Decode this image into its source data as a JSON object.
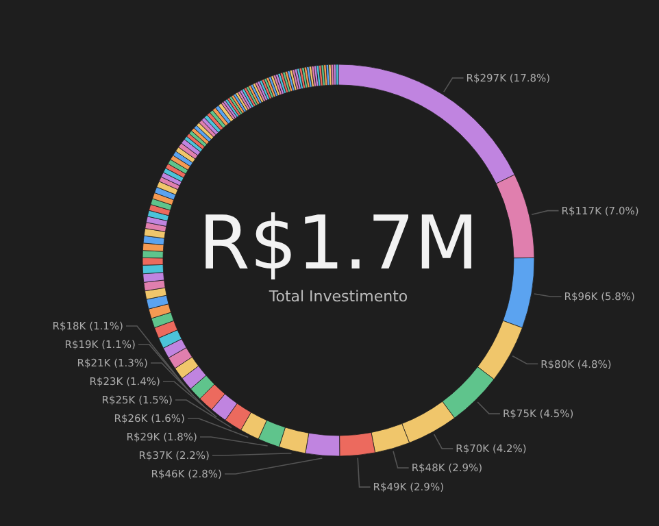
{
  "chart_data": {
    "type": "donut",
    "title": "R$1.7M",
    "subtitle": "Total Investimento",
    "categories": [
      null,
      null,
      null,
      null,
      null,
      null,
      null,
      null,
      null,
      null,
      null,
      null,
      null,
      null,
      null,
      null,
      null,
      null,
      null,
      null,
      null,
      null,
      null,
      null,
      null,
      null,
      null,
      null,
      null,
      null,
      null,
      null,
      null,
      null,
      null,
      null,
      null,
      null,
      null,
      null,
      null,
      null,
      null,
      null,
      null,
      null,
      null,
      null,
      null,
      null,
      null,
      null,
      null,
      null,
      null,
      null,
      null,
      null,
      null,
      null,
      null,
      null,
      null,
      null,
      null,
      null,
      null,
      null,
      null,
      null,
      null,
      null,
      null,
      null,
      null,
      null,
      null,
      null,
      null,
      null,
      null,
      null,
      null,
      null,
      null,
      null,
      null,
      null,
      null,
      null,
      null,
      null,
      null,
      null,
      null,
      null,
      null,
      null,
      null,
      null,
      null,
      null,
      null,
      null,
      null,
      null,
      null,
      null,
      null,
      null,
      null,
      null,
      null,
      null,
      null,
      null,
      null
    ],
    "values": [
      17.8,
      7.0,
      5.8,
      4.8,
      4.5,
      4.2,
      2.9,
      2.9,
      2.8,
      2.2,
      1.8,
      1.6,
      1.5,
      1.4,
      1.3,
      1.1,
      1.1,
      1.0,
      1.0,
      0.9,
      0.9,
      0.9,
      0.8,
      0.8,
      0.8,
      0.7,
      0.7,
      0.7,
      0.7,
      0.6,
      0.6,
      0.6,
      0.6,
      0.6,
      0.5,
      0.5,
      0.5,
      0.5,
      0.5,
      0.5,
      0.5,
      0.5,
      0.4,
      0.4,
      0.4,
      0.4,
      0.4,
      0.4,
      0.4,
      0.4,
      0.4,
      0.4,
      0.3,
      0.3,
      0.3,
      0.3,
      0.3,
      0.3,
      0.3,
      0.3,
      0.3,
      0.3,
      0.3,
      0.3,
      0.3,
      0.3,
      0.2,
      0.2,
      0.2,
      0.2,
      0.2,
      0.2,
      0.2,
      0.2,
      0.2,
      0.2,
      0.2,
      0.2,
      0.2,
      0.2,
      0.2,
      0.2,
      0.2,
      0.2,
      0.2,
      0.2,
      0.2,
      0.2,
      0.2,
      0.2,
      0.2,
      0.2,
      0.2,
      0.2,
      0.2,
      0.2,
      0.2,
      0.2,
      0.2,
      0.2,
      0.2,
      0.2,
      0.2,
      0.2,
      0.2,
      0.2,
      0.2,
      0.2,
      0.2,
      0.2,
      0.2,
      0.2,
      0.2,
      0.2,
      0.2,
      0.2,
      0.2
    ],
    "colors": [
      "#c084e0",
      "#e07fae",
      "#5ba3f0",
      "#f0c66b",
      "#5fc48c",
      "#f0c66b",
      "#f0c66b",
      "#ec6a5e",
      "#c084e0",
      "#f0c66b",
      "#5fc48c",
      "#f0c66b",
      "#ec6a5e",
      "#c084e0",
      "#ec6a5e",
      "#5fc48c",
      "#c084e0",
      "#f0c66b",
      "#e07fae",
      "#c084e0",
      "#4cc3d9",
      "#ec6a5e",
      "#5fc48c",
      "#f59a52",
      "#5ba3f0",
      "#f0c66b",
      "#e07fae",
      "#c084e0",
      "#4cc3d9",
      "#ec6a5e",
      "#5fc48c",
      "#f59a52",
      "#5ba3f0",
      "#f0c66b",
      "#e07fae",
      "#c084e0",
      "#4cc3d9",
      "#ec6a5e",
      "#5fc48c",
      "#f59a52",
      "#5ba3f0",
      "#f0c66b",
      "#e07fae",
      "#c084e0",
      "#4cc3d9",
      "#ec6a5e",
      "#5fc48c",
      "#f59a52",
      "#5ba3f0",
      "#f0c66b",
      "#e07fae",
      "#c084e0",
      "#4cc3d9",
      "#ec6a5e",
      "#5fc48c",
      "#f59a52",
      "#5ba3f0",
      "#f0c66b",
      "#e07fae",
      "#c084e0",
      "#4cc3d9",
      "#ec6a5e",
      "#5fc48c",
      "#f59a52",
      "#5ba3f0",
      "#f0c66b",
      "#e07fae",
      "#c084e0",
      "#4cc3d9",
      "#ec6a5e",
      "#5fc48c",
      "#f59a52",
      "#5ba3f0",
      "#f0c66b",
      "#e07fae",
      "#c084e0",
      "#4cc3d9",
      "#ec6a5e",
      "#5fc48c",
      "#f59a52",
      "#5ba3f0",
      "#f0c66b",
      "#e07fae",
      "#c084e0",
      "#4cc3d9",
      "#ec6a5e",
      "#5fc48c",
      "#f59a52",
      "#5ba3f0",
      "#f0c66b",
      "#e07fae",
      "#c084e0",
      "#4cc3d9",
      "#ec6a5e",
      "#5fc48c",
      "#f59a52",
      "#5ba3f0",
      "#f0c66b",
      "#e07fae",
      "#c084e0",
      "#4cc3d9",
      "#ec6a5e",
      "#5fc48c",
      "#f59a52",
      "#5ba3f0",
      "#f0c66b",
      "#e07fae",
      "#c084e0",
      "#4cc3d9",
      "#ec6a5e",
      "#5fc48c",
      "#f59a52",
      "#5ba3f0",
      "#f0c66b",
      "#e07fae",
      "#c084e0",
      "#4cc3d9"
    ],
    "value_labels": [
      "R$297K (17.8%)",
      "R$117K (7.0%)",
      "R$96K (5.8%)",
      "R$80K (4.8%)",
      "R$75K (4.5%)",
      "R$70K (4.2%)",
      "R$48K (2.9%)",
      "R$49K (2.9%)",
      "R$46K (2.8%)",
      "R$37K (2.2%)",
      "R$29K (1.8%)",
      "R$26K (1.6%)",
      "R$25K (1.5%)",
      "R$23K (1.4%)",
      "R$21K (1.3%)",
      "R$19K (1.1%)",
      "R$18K (1.1%)",
      null,
      null,
      null,
      null,
      null,
      null,
      null,
      null,
      null,
      null,
      null,
      null,
      null,
      null,
      null,
      null,
      null,
      null,
      null,
      null,
      null,
      null,
      null,
      null,
      null,
      null,
      null,
      null,
      null,
      null,
      null,
      null,
      null,
      null,
      null,
      null,
      null,
      null,
      null,
      null,
      null,
      null,
      null,
      null,
      null,
      null,
      null,
      null,
      null,
      null,
      null,
      null,
      null,
      null,
      null,
      null,
      null,
      null,
      null,
      null,
      null,
      null,
      null,
      null,
      null,
      null,
      null,
      null,
      null,
      null,
      null,
      null,
      null,
      null,
      null,
      null,
      null,
      null,
      null,
      null,
      null,
      null,
      null,
      null,
      null,
      null,
      null,
      null,
      null,
      null,
      null,
      null,
      null,
      null,
      null,
      null,
      null,
      null,
      null,
      null
    ]
  }
}
